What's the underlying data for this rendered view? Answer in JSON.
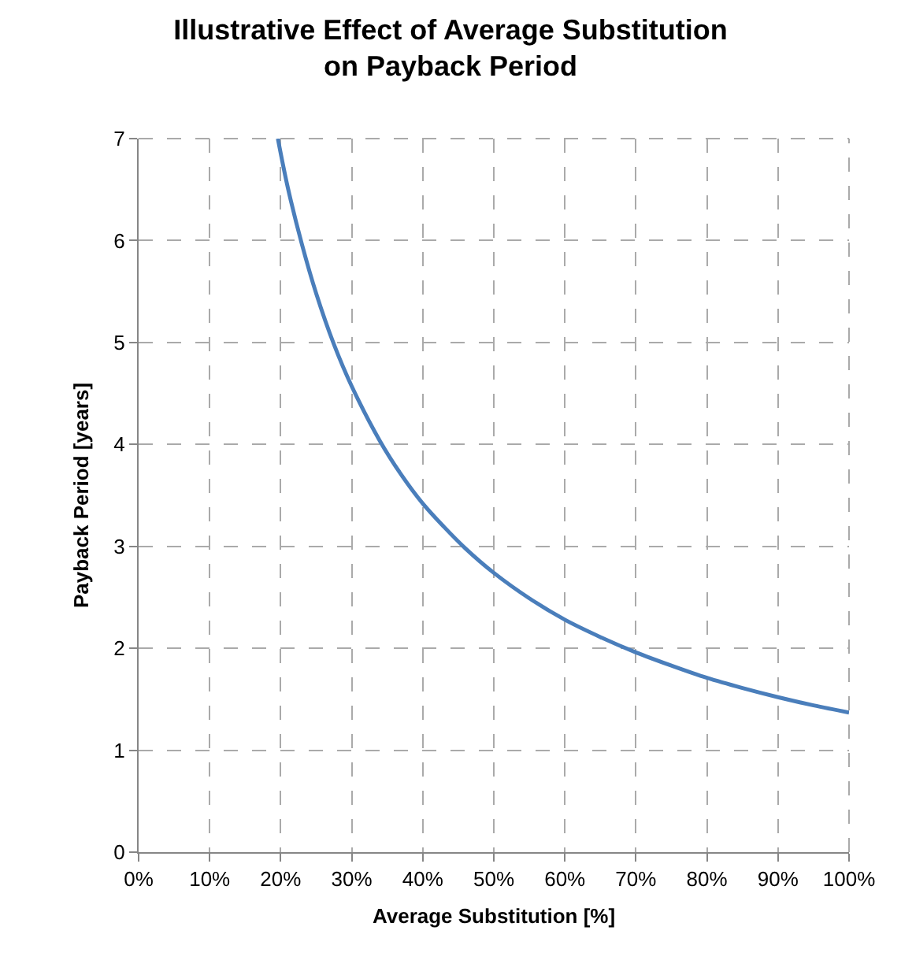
{
  "chart_data": {
    "type": "line",
    "title": "Illustrative Effect of Average Substitution\non Payback Period",
    "xlabel": "Average Substitution [%]",
    "ylabel": "Payback Period [years]",
    "series": [
      {
        "color": "#4a7ebb",
        "x": [
          19.6,
          21,
          23,
          25,
          27.5,
          30,
          34,
          37,
          40,
          43,
          46,
          50,
          55,
          60,
          65,
          70,
          75,
          80,
          85,
          90,
          95,
          100
        ],
        "values": [
          7.0,
          6.52,
          5.96,
          5.48,
          4.98,
          4.57,
          4.03,
          3.7,
          3.42,
          3.19,
          2.98,
          2.74,
          2.49,
          2.28,
          2.11,
          1.96,
          1.83,
          1.71,
          1.61,
          1.52,
          1.44,
          1.37
        ]
      }
    ],
    "xlim": [
      0,
      100
    ],
    "xticks": [
      {
        "value": 0,
        "label": "0%"
      },
      {
        "value": 10,
        "label": "10%"
      },
      {
        "value": 20,
        "label": "20%"
      },
      {
        "value": 30,
        "label": "30%"
      },
      {
        "value": 40,
        "label": "40%"
      },
      {
        "value": 50,
        "label": "50%"
      },
      {
        "value": 60,
        "label": "60%"
      },
      {
        "value": 70,
        "label": "70%"
      },
      {
        "value": 80,
        "label": "80%"
      },
      {
        "value": 90,
        "label": "90%"
      },
      {
        "value": 100,
        "label": "100%"
      }
    ],
    "ylim": [
      0,
      7
    ],
    "yticks": [
      0,
      1,
      2,
      3,
      4,
      5,
      6,
      7
    ],
    "grid": true,
    "marker": "none",
    "line_style": "solid"
  }
}
